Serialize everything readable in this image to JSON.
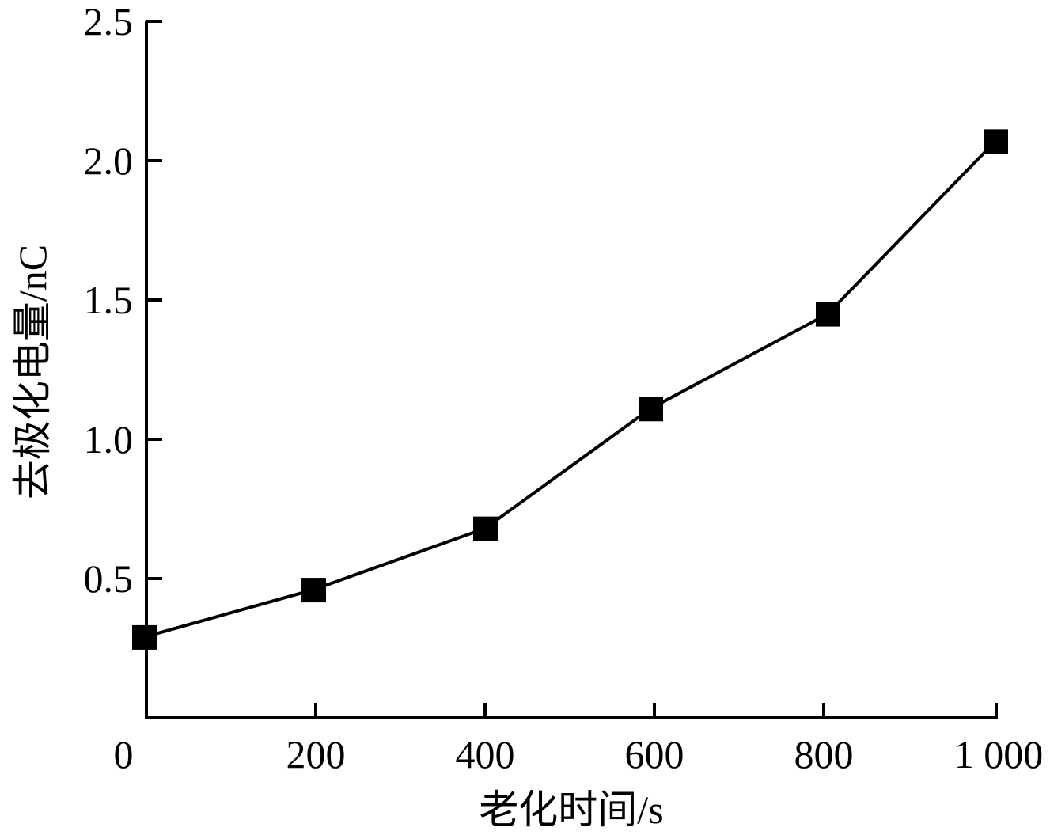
{
  "chart_data": {
    "type": "line",
    "title": "",
    "xlabel": "老化时间/s",
    "ylabel": "去极化电量/nC",
    "x": [
      0,
      200,
      400,
      600,
      800,
      1000
    ],
    "series": [
      {
        "name": "去极化电量",
        "values": [
          0.29,
          0.46,
          0.68,
          1.11,
          1.45,
          2.07
        ],
        "marker": "filled-square",
        "color": "#000000"
      }
    ],
    "xlim": [
      0,
      1000
    ],
    "ylim": [
      0,
      2.5
    ],
    "xticks": [
      0,
      200,
      400,
      600,
      800,
      1000
    ],
    "xtick_labels": [
      "0",
      "200",
      "400",
      "600",
      "800",
      "1 000"
    ],
    "yticks": [
      0.5,
      1.0,
      1.5,
      2.0,
      2.5
    ],
    "ytick_labels": [
      "0.5",
      "1.0",
      "1.5",
      "2.0",
      "2.5"
    ],
    "grid": false,
    "legend": null
  },
  "colors": {
    "line": "#000000",
    "marker": "#000000",
    "axis": "#000000",
    "background": "#ffffff"
  }
}
